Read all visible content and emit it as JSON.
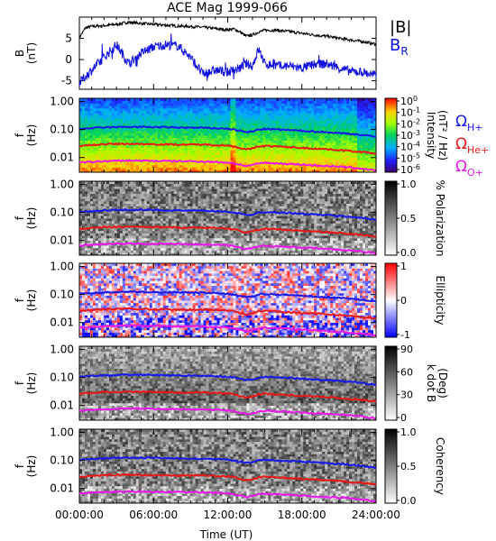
{
  "chart_data": {
    "type": "spectrogram",
    "title": "ACE Mag 1999-066",
    "xlabel": "Time (UT)",
    "x_ticks": [
      "00:00:00",
      "06:00:00",
      "12:00:00",
      "18:00:00",
      "24:00:00"
    ],
    "xlim_hours": [
      0,
      24
    ],
    "panels": [
      {
        "type": "line",
        "ylabel": "B",
        "yunits": "(nT)",
        "ylim": [
          -7,
          10
        ],
        "y_ticks": [
          "5",
          "0",
          "-5"
        ],
        "y_tick_values": [
          5,
          0,
          -5
        ],
        "series": [
          {
            "name": "|B|",
            "color": "#000000",
            "x": [
              0,
              0.5,
              1,
              2,
              3,
              4,
              5,
              6,
              7,
              8,
              9,
              10,
              11,
              12,
              12.5,
              13,
              13.5,
              14,
              14.5,
              15,
              16,
              17,
              18,
              19,
              20,
              21,
              22,
              23,
              24
            ],
            "y": [
              5.2,
              7.5,
              7.8,
              8.0,
              8.3,
              8.8,
              8.5,
              8.3,
              8.1,
              7.9,
              7.8,
              7.6,
              7.3,
              7.0,
              7.2,
              6.5,
              5.5,
              5.8,
              6.5,
              6.9,
              6.9,
              6.6,
              6.2,
              5.8,
              5.5,
              5.0,
              4.6,
              4.2,
              3.6
            ]
          },
          {
            "name": "B",
            "subscript": "R",
            "color": "#1010e0",
            "x": [
              0,
              0.5,
              1,
              2,
              3,
              4,
              5,
              6,
              7,
              8,
              9,
              10,
              11,
              12,
              12.5,
              13,
              13.5,
              14,
              14.5,
              15,
              16,
              17,
              18,
              19,
              20,
              21,
              22,
              23,
              24
            ],
            "y": [
              -5.5,
              -4.0,
              -2.5,
              0.5,
              3.5,
              -1.0,
              1.5,
              3.0,
              3.5,
              3.2,
              0.5,
              -3.5,
              -2.5,
              -3.0,
              -2.5,
              -2.0,
              -1.0,
              -1.5,
              2.5,
              -1.0,
              -1.5,
              -1.5,
              -2.0,
              -1.2,
              -1.0,
              -2.0,
              -2.8,
              -3.0,
              -3.8
            ]
          }
        ]
      },
      {
        "type": "heatmap",
        "ylabel": "f",
        "yunits": "(Hz)",
        "scale": "log",
        "ylim": [
          0.003,
          1.3
        ],
        "y_ticks": [
          "1.00",
          "0.10",
          "0.01"
        ],
        "y_tick_values": [
          1,
          0.1,
          0.01
        ],
        "colormap": "rainbow",
        "colorbar": {
          "label": "Intensity",
          "units": "(nT² / Hz)",
          "ticks": [
            {
              "base": "10",
              "exp": "0"
            },
            {
              "base": "10",
              "exp": "-1"
            },
            {
              "base": "10",
              "exp": "-2"
            },
            {
              "base": "10",
              "exp": "-3"
            },
            {
              "base": "10",
              "exp": "-4"
            },
            {
              "base": "10",
              "exp": "-5"
            },
            {
              "base": "10",
              "exp": "-6"
            }
          ]
        }
      },
      {
        "type": "heatmap",
        "ylabel": "f",
        "yunits": "(Hz)",
        "scale": "log",
        "ylim": [
          0.003,
          1.3
        ],
        "y_ticks": [
          "1.00",
          "0.10",
          "0.01"
        ],
        "y_tick_values": [
          1,
          0.1,
          0.01
        ],
        "colormap": "gray",
        "colorbar": {
          "label": "% Polarization",
          "ticks": [
            "1.0",
            "0.5",
            "0.0"
          ],
          "range": [
            0,
            1
          ]
        }
      },
      {
        "type": "heatmap",
        "ylabel": "f",
        "yunits": "(Hz)",
        "scale": "log",
        "ylim": [
          0.003,
          1.3
        ],
        "y_ticks": [
          "1.00",
          "0.10",
          "0.01"
        ],
        "y_tick_values": [
          1,
          0.1,
          0.01
        ],
        "colormap": "bluewhitered",
        "colorbar": {
          "label": "Ellipticity",
          "ticks": [
            "1",
            "0",
            "-1"
          ],
          "range": [
            -1,
            1
          ]
        }
      },
      {
        "type": "heatmap",
        "ylabel": "f",
        "yunits": "(Hz)",
        "scale": "log",
        "ylim": [
          0.003,
          1.3
        ],
        "y_ticks": [
          "1.00",
          "0.10",
          "0.01"
        ],
        "y_tick_values": [
          1,
          0.1,
          0.01
        ],
        "colormap": "gray",
        "colorbar": {
          "label": "k dot B",
          "units": "(Deg)",
          "ticks": [
            "90",
            "60",
            "30",
            "0"
          ],
          "range": [
            0,
            90
          ]
        }
      },
      {
        "type": "heatmap",
        "ylabel": "f",
        "yunits": "(Hz)",
        "scale": "log",
        "ylim": [
          0.003,
          1.3
        ],
        "y_ticks": [
          "1.00",
          "0.10",
          "0.01"
        ],
        "y_tick_values": [
          1,
          0.1,
          0.01
        ],
        "colormap": "gray",
        "colorbar": {
          "label": "Coherency",
          "ticks": [
            "1.0",
            "0.5",
            "0.0"
          ],
          "range": [
            0,
            1
          ]
        }
      }
    ],
    "gyrofrequency_lines": {
      "legend": [
        {
          "symbol": "Ω",
          "sub": "H+",
          "color": "#1818e8"
        },
        {
          "symbol": "Ω",
          "sub": "He+",
          "color": "#e81818"
        },
        {
          "symbol": "Ω",
          "sub": "O+",
          "color": "#e818e8"
        }
      ],
      "x": [
        0,
        1,
        2,
        4,
        6,
        8,
        10,
        12,
        12.5,
        13,
        13.5,
        14,
        14.5,
        15,
        16,
        18,
        20,
        22,
        24
      ],
      "H+": [
        0.105,
        0.112,
        0.118,
        0.125,
        0.122,
        0.118,
        0.115,
        0.107,
        0.1,
        0.09,
        0.08,
        0.085,
        0.1,
        0.105,
        0.1,
        0.09,
        0.08,
        0.07,
        0.055
      ],
      "He+": [
        0.026,
        0.028,
        0.03,
        0.031,
        0.03,
        0.029,
        0.029,
        0.027,
        0.025,
        0.022,
        0.019,
        0.021,
        0.025,
        0.026,
        0.025,
        0.022,
        0.02,
        0.017,
        0.014
      ],
      "O+": [
        0.0066,
        0.007,
        0.0074,
        0.0078,
        0.0076,
        0.0074,
        0.0072,
        0.0067,
        0.0062,
        0.0056,
        0.005,
        0.0053,
        0.0062,
        0.0065,
        0.0062,
        0.0056,
        0.005,
        0.0044,
        0.0035
      ]
    }
  }
}
